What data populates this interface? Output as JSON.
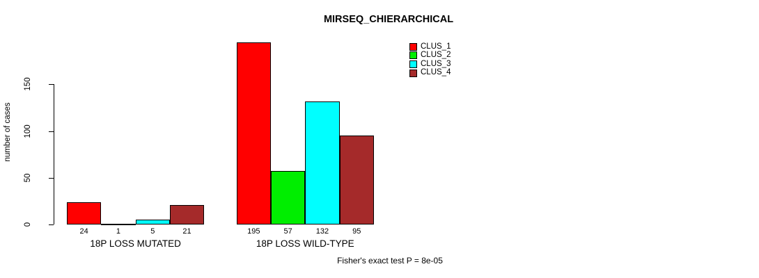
{
  "title": "MIRSEQ_CHIERARCHICAL",
  "footer": "Fisher's exact test P = 8e-05",
  "chart_data": {
    "type": "bar",
    "title": "MIRSEQ_CHIERARCHICAL",
    "ylabel": "number of cases",
    "xlabel": "",
    "categories": [
      "18P LOSS MUTATED",
      "18P LOSS WILD-TYPE"
    ],
    "series": [
      {
        "name": "CLUS_1",
        "color": "#ff0000",
        "values": [
          24,
          195
        ]
      },
      {
        "name": "CLUS_2",
        "color": "#00ee00",
        "values": [
          1,
          57
        ]
      },
      {
        "name": "CLUS_3",
        "color": "#00ffff",
        "values": [
          5,
          132
        ]
      },
      {
        "name": "CLUS_4",
        "color": "#a52a2a",
        "values": [
          21,
          95
        ]
      }
    ],
    "bar_value_labels": [
      [
        24,
        1,
        5,
        21
      ],
      [
        195,
        57,
        132,
        95
      ]
    ],
    "yticks": [
      0,
      50,
      100,
      150
    ],
    "ylim": [
      0,
      150
    ],
    "grid": false,
    "legend_position": "top-right",
    "annotation": "Fisher's exact test P = 8e-05"
  }
}
